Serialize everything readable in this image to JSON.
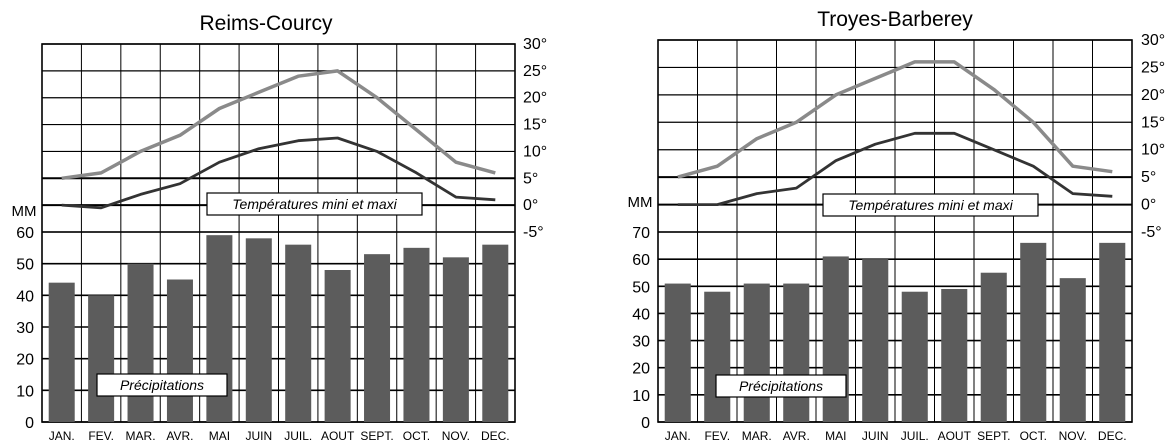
{
  "chart_data": [
    {
      "type": "bar",
      "title": "Reims-Courcy",
      "categories": [
        "JAN.",
        "FEV.",
        "MAR.",
        "AVR.",
        "MAI",
        "JUIN",
        "JUIL.",
        "AOUT",
        "SEPT.",
        "OCT.",
        "NOV.",
        "DEC."
      ],
      "precip_unit": "MM",
      "precip_ticks": [
        "0",
        "10",
        "20",
        "30",
        "40",
        "50",
        "60"
      ],
      "precip_ylim": [
        0,
        60
      ],
      "temp_ticks": [
        "-5°",
        "0°",
        "5°",
        "10°",
        "15°",
        "20°",
        "25°",
        "30°"
      ],
      "temp_ylim": [
        -5,
        30
      ],
      "precip_label": "Précipitations",
      "temp_label": "Températures mini et maxi",
      "series": [
        {
          "name": "Précipitations",
          "values": [
            44,
            40,
            50,
            45,
            59,
            58,
            56,
            48,
            53,
            55,
            52,
            56
          ]
        }
      ],
      "temp_max": [
        5,
        6,
        10,
        13,
        18,
        21,
        24,
        25,
        20,
        14,
        8,
        6
      ],
      "temp_min": [
        0,
        -0.5,
        2,
        4,
        8,
        10.5,
        12,
        12.5,
        10,
        6,
        1.5,
        1
      ],
      "colors": {
        "bars": "#5c5c5c",
        "max_line": "#8a8a8a",
        "min_line": "#333333",
        "grid": "#000000"
      }
    },
    {
      "type": "bar",
      "title": "Troyes-Barberey",
      "categories": [
        "JAN.",
        "FEV.",
        "MAR.",
        "AVR.",
        "MAI",
        "JUIN",
        "JUIL.",
        "AOUT",
        "SEPT.",
        "OCT.",
        "NOV.",
        "DEC."
      ],
      "precip_unit": "MM",
      "precip_ticks": [
        "0",
        "10",
        "20",
        "30",
        "40",
        "50",
        "60",
        "70"
      ],
      "precip_ylim": [
        0,
        70
      ],
      "temp_ticks": [
        "-5°",
        "0°",
        "5°",
        "10°",
        "15°",
        "20°",
        "25°",
        "30°"
      ],
      "temp_ylim": [
        -5,
        30
      ],
      "precip_label": "Précipitations",
      "temp_label": "Températures mini et maxi",
      "series": [
        {
          "name": "Précipitations",
          "values": [
            51,
            48,
            51,
            51,
            61,
            60,
            48,
            49,
            55,
            66,
            53,
            66
          ]
        }
      ],
      "temp_max": [
        5,
        7,
        12,
        15,
        20,
        23,
        26,
        26,
        21,
        15,
        7,
        6
      ],
      "temp_min": [
        0,
        0,
        2,
        3,
        8,
        11,
        13,
        13,
        10,
        7,
        2,
        1.5
      ],
      "colors": {
        "bars": "#5c5c5c",
        "max_line": "#8a8a8a",
        "min_line": "#333333",
        "grid": "#000000"
      }
    }
  ]
}
